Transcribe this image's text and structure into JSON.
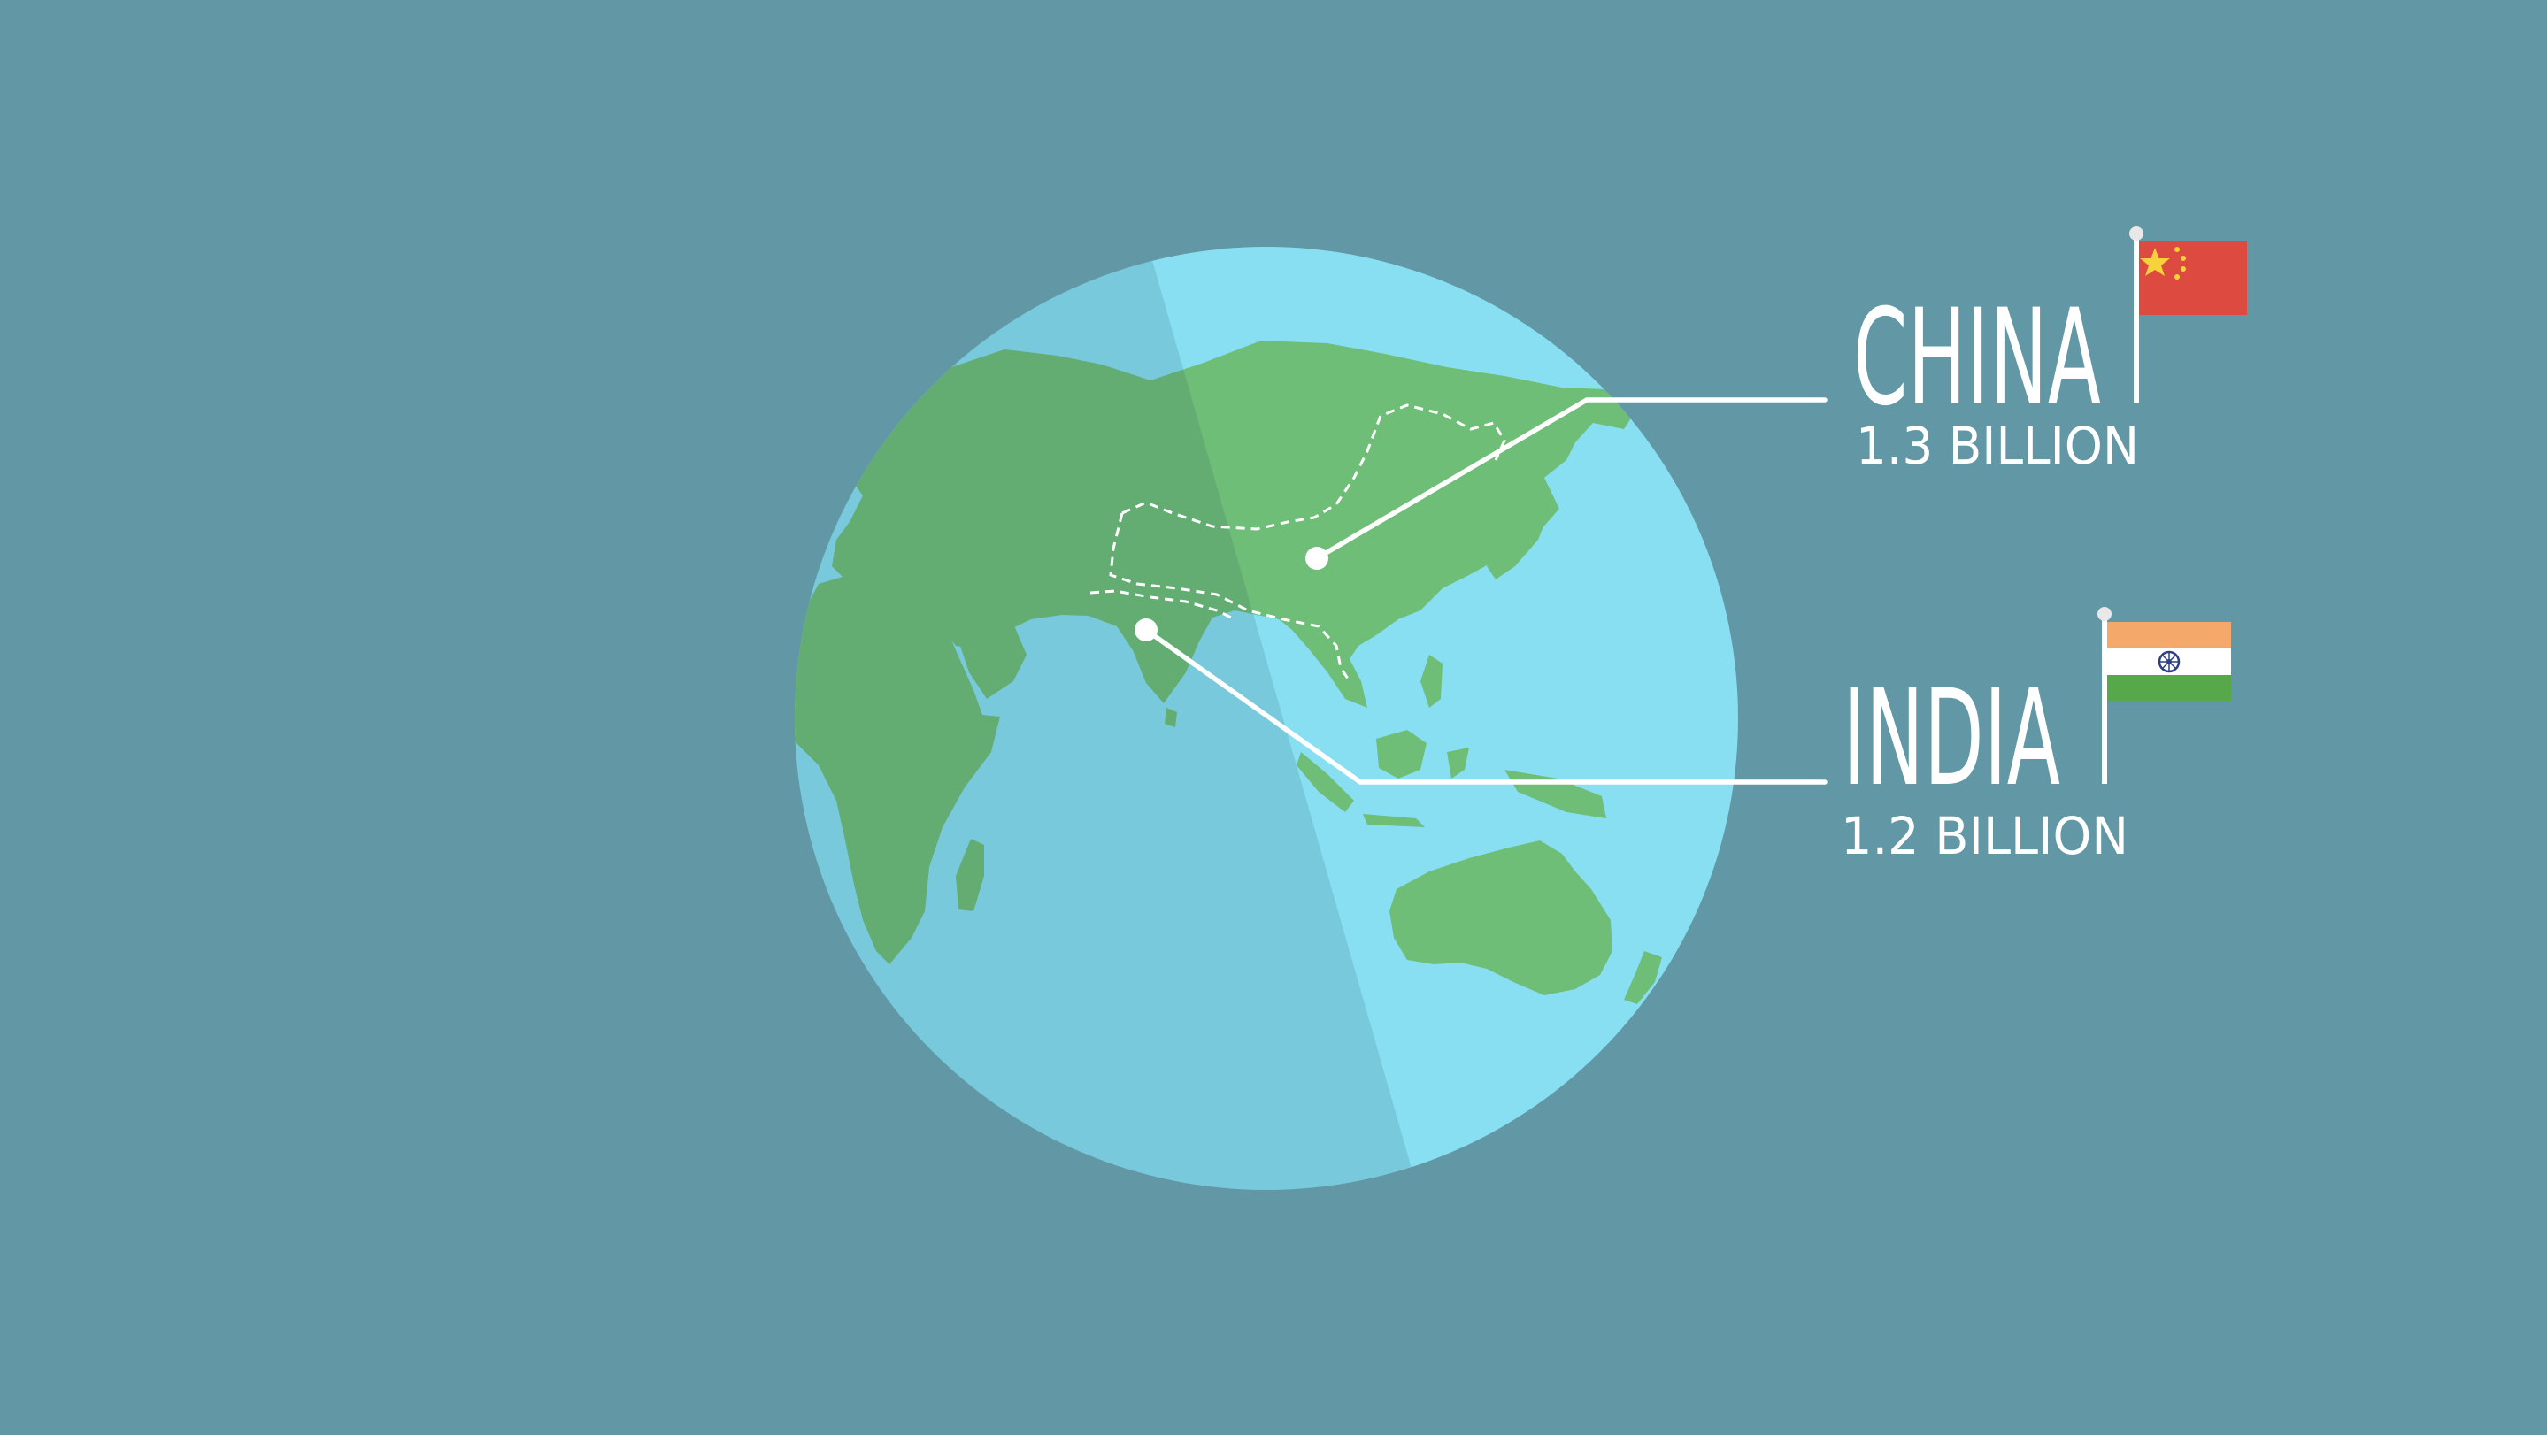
{
  "callouts": {
    "china": {
      "name": "CHINA",
      "population": "1.3 BILLION"
    },
    "india": {
      "name": "INDIA",
      "population": "1.2 BILLION"
    }
  },
  "colors": {
    "background": "#6298a6",
    "ocean_light": "#88dff2",
    "ocean_shade": "#80cbda",
    "land_light": "#6fbe78",
    "land_shade": "#67ab70",
    "china_red": "#dc4a40",
    "china_star": "#f7d23d",
    "india_saffron": "#f4a96a",
    "india_green": "#56a84a",
    "india_chakra": "#2b3f86"
  }
}
